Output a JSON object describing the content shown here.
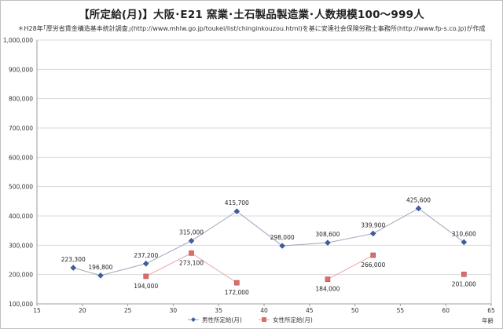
{
  "title": "【所定給(月)】大阪･E21 窯業･土石製品製造業･人数規模100～999人",
  "subtitle": "＊H28年｢厚労省賃金構造基本統計調査｣(http://www.mhlw.go.jp/toukei/list/chinginkouzou.html)を基に安達社会保険労務士事務所(http://www.fp-s.co.jp)が作成",
  "chart_data": {
    "type": "line",
    "title": "【所定給(月)】大阪･E21 窯業･土石製品製造業･人数規模100～999人",
    "xlabel": "年齢",
    "ylabel": "",
    "xlim": [
      15,
      65
    ],
    "ylim": [
      100000,
      1000000
    ],
    "x_ticks": [
      "15",
      "20",
      "25",
      "30",
      "35",
      "40",
      "45",
      "50",
      "55",
      "60",
      "65"
    ],
    "y_ticks": [
      "100,000",
      "200,000",
      "300,000",
      "400,000",
      "500,000",
      "600,000",
      "700,000",
      "800,000",
      "900,000",
      "1,000,000"
    ],
    "grid": true,
    "legend_position": "bottom",
    "series": [
      {
        "name": "男性所定給(月)",
        "color": "#4a6ea8",
        "marker": "diamond",
        "connected": true,
        "points": [
          {
            "x": 19,
            "y": 223300,
            "label": "223,300"
          },
          {
            "x": 22,
            "y": 196800,
            "label": "196,800"
          },
          {
            "x": 27,
            "y": 237200,
            "label": "237,200"
          },
          {
            "x": 32,
            "y": 315000,
            "label": "315,000"
          },
          {
            "x": 37,
            "y": 415700,
            "label": "415,700"
          },
          {
            "x": 42,
            "y": 298000,
            "label": "298,000"
          },
          {
            "x": 47,
            "y": 308600,
            "label": "308,600"
          },
          {
            "x": 52,
            "y": 339900,
            "label": "339,900"
          },
          {
            "x": 57,
            "y": 425600,
            "label": "425,600"
          },
          {
            "x": 62,
            "y": 310600,
            "label": "310,600"
          }
        ]
      },
      {
        "name": "女性所定給(月)",
        "color": "#e8a0a0",
        "marker": "square",
        "connected": false,
        "points": [
          {
            "x": 27,
            "y": 194000,
            "label": "194,000"
          },
          {
            "x": 32,
            "y": 273100,
            "label": "273,100"
          },
          {
            "x": 37,
            "y": 172000,
            "label": "172,000"
          },
          {
            "x": 47,
            "y": 184000,
            "label": "184,000"
          },
          {
            "x": 52,
            "y": 266000,
            "label": "266,000"
          },
          {
            "x": 62,
            "y": 201000,
            "label": "201,000"
          }
        ]
      }
    ],
    "segments": [
      {
        "series": 1,
        "from": 0,
        "to": 1
      },
      {
        "series": 1,
        "from": 1,
        "to": 2
      },
      {
        "series": 1,
        "from": 3,
        "to": 4
      }
    ]
  }
}
